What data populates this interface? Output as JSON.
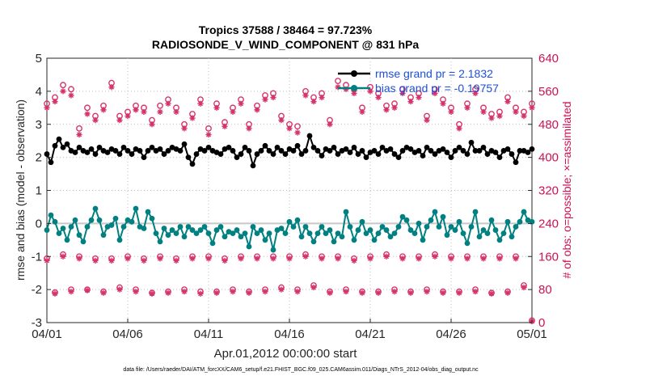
{
  "chart_data": {
    "type": "line",
    "title_line1": "Tropics 37588 / 38464 = 97.723%",
    "title_line2": "RADIOSONDE_V_WIND_COMPONENT @ 831 hPa",
    "xlabel": "Apr.01,2012 00:00:00 start",
    "ylabel_left": "rmse and bias (model - observation)",
    "ylabel_right": "# of obs: o=possible; ×=assimilated",
    "xlim": [
      0,
      30
    ],
    "ylim_left": [
      -3,
      5
    ],
    "ylim_right": [
      0,
      640
    ],
    "x_ticks": [
      0,
      5,
      10,
      15,
      20,
      25,
      30
    ],
    "x_tick_labels": [
      "04/01",
      "04/06",
      "04/11",
      "04/16",
      "04/21",
      "04/26",
      "05/01"
    ],
    "y_ticks_left": [
      -3,
      -2,
      -1,
      0,
      1,
      2,
      3,
      4,
      5
    ],
    "y_ticks_right": [
      0,
      80,
      160,
      240,
      320,
      400,
      480,
      560,
      640
    ],
    "legend": [
      {
        "label": "rmse grand pr = 2.1832",
        "color": "#000000"
      },
      {
        "label": "bias grand pr = -0.19757",
        "color": "#008080"
      }
    ],
    "footer": "data file: /Users/raeder/DAI/ATM_forcXX/CAM6_setup/f.e21.FHIST_BGC.f09_025.CAM6assim.011/Diags_NTrS_2012-04/obs_diag_output.nc",
    "x": [
      0.0,
      0.25,
      0.5,
      0.75,
      1.0,
      1.25,
      1.5,
      1.75,
      2.0,
      2.25,
      2.5,
      2.75,
      3.0,
      3.25,
      3.5,
      3.75,
      4.0,
      4.25,
      4.5,
      4.75,
      5.0,
      5.25,
      5.5,
      5.75,
      6.0,
      6.25,
      6.5,
      6.75,
      7.0,
      7.25,
      7.5,
      7.75,
      8.0,
      8.25,
      8.5,
      8.75,
      9.0,
      9.25,
      9.5,
      9.75,
      10.0,
      10.25,
      10.5,
      10.75,
      11.0,
      11.25,
      11.5,
      11.75,
      12.0,
      12.25,
      12.5,
      12.75,
      13.0,
      13.25,
      13.5,
      13.75,
      14.0,
      14.25,
      14.5,
      14.75,
      15.0,
      15.25,
      15.5,
      15.75,
      16.0,
      16.25,
      16.5,
      16.75,
      17.0,
      17.25,
      17.5,
      17.75,
      18.0,
      18.25,
      18.5,
      18.75,
      19.0,
      19.25,
      19.5,
      19.75,
      20.0,
      20.25,
      20.5,
      20.75,
      21.0,
      21.25,
      21.5,
      21.75,
      22.0,
      22.25,
      22.5,
      22.75,
      23.0,
      23.25,
      23.5,
      23.75,
      24.0,
      24.25,
      24.5,
      24.75,
      25.0,
      25.25,
      25.5,
      25.75,
      26.0,
      26.25,
      26.5,
      26.75,
      27.0,
      27.25,
      27.5,
      27.75,
      28.0,
      28.25,
      28.5,
      28.75,
      29.0,
      29.25,
      29.5,
      29.75,
      30.0
    ],
    "rmse": [
      2.1,
      1.85,
      2.35,
      2.55,
      2.3,
      2.4,
      2.2,
      2.15,
      2.3,
      2.2,
      2.15,
      2.25,
      2.1,
      2.3,
      2.2,
      2.15,
      2.25,
      2.2,
      2.1,
      2.3,
      2.2,
      2.1,
      2.25,
      2.2,
      2.0,
      2.2,
      2.3,
      2.2,
      2.25,
      2.1,
      2.2,
      2.3,
      2.25,
      2.2,
      2.4,
      2.0,
      1.8,
      2.1,
      2.25,
      2.2,
      2.3,
      2.2,
      2.15,
      2.1,
      2.25,
      2.3,
      2.2,
      2.0,
      2.1,
      2.3,
      2.2,
      1.75,
      2.1,
      2.2,
      2.35,
      2.2,
      2.1,
      2.3,
      2.2,
      2.1,
      2.25,
      2.2,
      2.35,
      2.1,
      2.2,
      2.65,
      2.3,
      2.2,
      2.05,
      2.25,
      2.2,
      2.3,
      2.1,
      2.2,
      2.25,
      2.15,
      2.3,
      2.1,
      2.2,
      2.0,
      2.15,
      2.2,
      2.1,
      2.3,
      2.2,
      2.25,
      2.1,
      2.0,
      2.2,
      2.3,
      2.25,
      2.15,
      2.2,
      2.05,
      2.3,
      2.2,
      2.1,
      2.2,
      2.25,
      2.15,
      2.0,
      2.2,
      2.3,
      2.2,
      2.1,
      2.45,
      2.2,
      2.2,
      2.3,
      2.1,
      2.2,
      2.15,
      2.0,
      2.2,
      2.25,
      2.1,
      1.85,
      2.2,
      2.2,
      2.15,
      2.25,
      2.2,
      2.35
    ],
    "bias": [
      -0.2,
      0.25,
      0.05,
      -0.3,
      -0.15,
      -0.5,
      -0.1,
      0.1,
      -0.35,
      -0.55,
      -0.1,
      0.1,
      0.45,
      0.1,
      -0.35,
      -0.1,
      -0.05,
      0.15,
      -0.5,
      -0.1,
      0.1,
      0.05,
      0.45,
      -0.1,
      -0.15,
      0.35,
      0.15,
      -0.3,
      -0.55,
      -0.15,
      -0.35,
      -0.2,
      -0.3,
      -0.1,
      -0.4,
      -0.1,
      -0.2,
      -0.3,
      -0.2,
      -0.1,
      -0.3,
      -0.6,
      -0.2,
      -0.1,
      -0.4,
      -0.25,
      -0.3,
      -0.2,
      -0.4,
      -0.3,
      -0.7,
      -0.1,
      -0.3,
      -0.2,
      -0.5,
      -0.3,
      -0.8,
      -0.2,
      -0.15,
      -0.3,
      0.05,
      -0.1,
      0.1,
      -0.4,
      -0.1,
      -0.3,
      -0.55,
      -0.3,
      -0.1,
      -0.3,
      -0.2,
      -0.55,
      -0.3,
      -0.4,
      0.35,
      -0.1,
      -0.5,
      -0.2,
      0.05,
      -0.3,
      -0.2,
      -0.5,
      -0.3,
      -0.1,
      -0.2,
      -0.4,
      -0.3,
      -0.1,
      0.2,
      0.1,
      -0.2,
      -0.3,
      0.0,
      -0.5,
      -0.1,
      0.1,
      0.35,
      -0.1,
      0.2,
      -0.35,
      -0.1,
      -0.2,
      0.05,
      -0.3,
      -0.6,
      -0.1,
      0.35,
      -0.4,
      -0.2,
      -0.3,
      0.1,
      -0.2,
      -0.5,
      -0.3,
      0.05,
      -0.4,
      -0.1,
      0.05,
      0.35,
      0.1,
      0.05,
      0.05,
      0.6
    ],
    "obs_x": [
      0.0,
      0.5,
      1.0,
      1.5,
      2.0,
      2.5,
      3.0,
      3.5,
      4.0,
      4.5,
      5.0,
      5.5,
      6.0,
      6.5,
      7.0,
      7.5,
      8.0,
      8.5,
      9.0,
      9.5,
      10.0,
      10.5,
      11.0,
      11.5,
      12.0,
      12.5,
      13.0,
      13.5,
      14.0,
      14.5,
      15.0,
      15.5,
      16.0,
      16.5,
      17.0,
      17.5,
      18.0,
      18.5,
      19.0,
      19.5,
      20.0,
      20.5,
      21.0,
      21.5,
      22.0,
      22.5,
      23.0,
      23.5,
      24.0,
      24.5,
      25.0,
      25.5,
      26.0,
      26.5,
      27.0,
      27.5,
      28.0,
      28.5,
      29.0,
      29.5,
      30.0
    ],
    "obs_possible": [
      155,
      73,
      165,
      80,
      160,
      80,
      155,
      75,
      155,
      85,
      160,
      80,
      155,
      72,
      160,
      75,
      155,
      80,
      160,
      75,
      160,
      75,
      155,
      80,
      160,
      75,
      160,
      80,
      160,
      85,
      160,
      80,
      165,
      90,
      160,
      75,
      160,
      80,
      155,
      75,
      160,
      75,
      165,
      80,
      160,
      75,
      160,
      80,
      165,
      75,
      160,
      75,
      160,
      80,
      160,
      72,
      160,
      75,
      160,
      90,
      5
    ],
    "obs_assimilated": [
      150,
      70,
      160,
      75,
      155,
      78,
      150,
      72,
      150,
      80,
      155,
      75,
      150,
      70,
      155,
      72,
      150,
      75,
      155,
      70,
      155,
      72,
      150,
      75,
      155,
      72,
      155,
      75,
      155,
      80,
      155,
      75,
      160,
      85,
      155,
      72,
      155,
      75,
      150,
      72,
      155,
      72,
      160,
      75,
      155,
      72,
      155,
      75,
      160,
      72,
      155,
      72,
      155,
      75,
      155,
      70,
      155,
      72,
      155,
      85,
      3
    ],
    "obs_possible_upper": [
      530,
      545,
      575,
      565,
      470,
      520,
      500,
      525,
      580,
      500,
      510,
      525,
      520,
      490,
      525,
      540,
      520,
      480,
      505,
      540,
      470,
      530,
      485,
      520,
      540,
      480,
      525,
      550,
      555,
      500,
      480,
      475,
      560,
      545,
      555,
      490,
      585,
      575,
      565,
      520,
      570,
      555,
      525,
      530,
      565,
      545,
      555,
      500,
      565,
      540,
      520,
      480,
      530,
      565,
      520,
      505,
      510,
      545,
      520,
      510,
      530
    ],
    "obs_assimilated_upper": [
      520,
      535,
      560,
      550,
      455,
      505,
      490,
      515,
      570,
      490,
      500,
      515,
      510,
      480,
      510,
      530,
      510,
      470,
      495,
      530,
      455,
      520,
      475,
      510,
      530,
      470,
      515,
      540,
      545,
      490,
      470,
      460,
      550,
      535,
      545,
      480,
      570,
      565,
      555,
      510,
      560,
      545,
      515,
      520,
      555,
      535,
      545,
      490,
      555,
      530,
      510,
      470,
      520,
      555,
      510,
      495,
      500,
      535,
      510,
      500,
      520
    ]
  }
}
